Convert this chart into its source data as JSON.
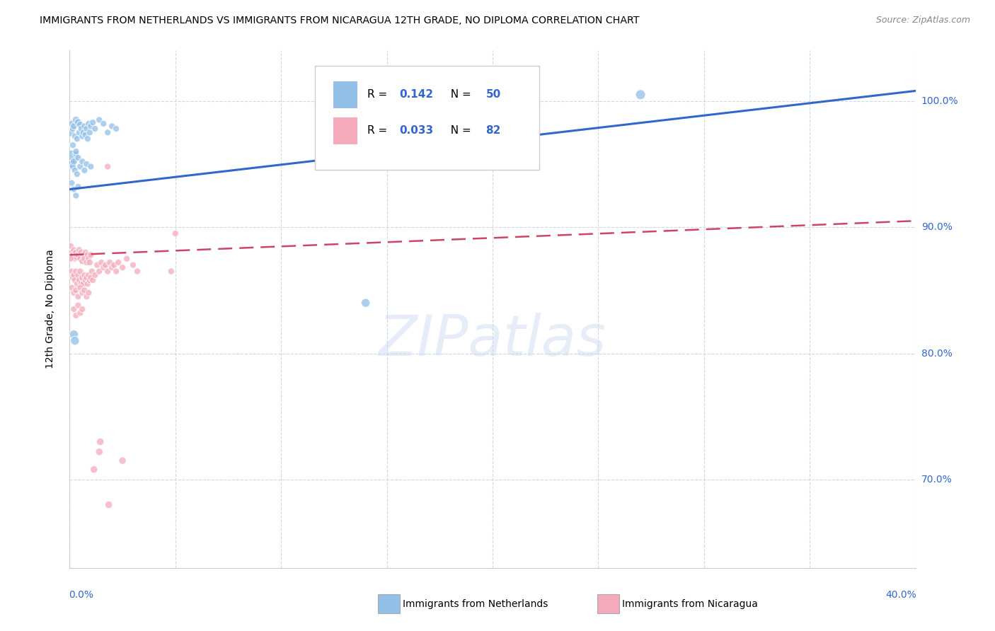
{
  "title": "IMMIGRANTS FROM NETHERLANDS VS IMMIGRANTS FROM NICARAGUA 12TH GRADE, NO DIPLOMA CORRELATION CHART",
  "source": "Source: ZipAtlas.com",
  "ylabel": "12th Grade, No Diploma",
  "xlim": [
    0.0,
    40.0
  ],
  "ylim": [
    63.0,
    104.0
  ],
  "yticks": [
    70,
    80,
    90,
    100
  ],
  "xticks": [
    0,
    5,
    10,
    15,
    20,
    25,
    30,
    35,
    40
  ],
  "legend_netherlands_R": 0.142,
  "legend_netherlands_N": 50,
  "legend_nicaragua_R": 0.033,
  "legend_nicaragua_N": 82,
  "blue_scatter_color": "#92C0E8",
  "pink_scatter_color": "#F4AABB",
  "trend_blue_color": "#3366CC",
  "trend_pink_color": "#CC4466",
  "watermark": "ZIPatlas",
  "blue_trend_x0": 0.0,
  "blue_trend_y0": 93.0,
  "blue_trend_x1": 40.0,
  "blue_trend_y1": 100.8,
  "pink_trend_x0": 0.0,
  "pink_trend_y0": 87.8,
  "pink_trend_x1": 40.0,
  "pink_trend_y1": 90.5,
  "netherlands_points": [
    [
      0.05,
      97.5
    ],
    [
      0.1,
      98.2
    ],
    [
      0.15,
      97.8
    ],
    [
      0.2,
      98.0
    ],
    [
      0.25,
      97.2
    ],
    [
      0.3,
      98.5
    ],
    [
      0.35,
      97.0
    ],
    [
      0.4,
      98.3
    ],
    [
      0.45,
      97.5
    ],
    [
      0.5,
      98.1
    ],
    [
      0.55,
      97.8
    ],
    [
      0.6,
      97.2
    ],
    [
      0.65,
      97.5
    ],
    [
      0.7,
      98.0
    ],
    [
      0.75,
      97.3
    ],
    [
      0.8,
      97.8
    ],
    [
      0.85,
      97.0
    ],
    [
      0.9,
      98.2
    ],
    [
      0.95,
      97.5
    ],
    [
      1.0,
      98.0
    ],
    [
      1.1,
      98.3
    ],
    [
      1.2,
      97.8
    ],
    [
      1.4,
      98.5
    ],
    [
      1.6,
      98.2
    ],
    [
      1.8,
      97.5
    ],
    [
      2.0,
      98.0
    ],
    [
      2.2,
      97.8
    ],
    [
      0.05,
      95.5
    ],
    [
      0.1,
      95.0
    ],
    [
      0.15,
      94.8
    ],
    [
      0.2,
      95.2
    ],
    [
      0.25,
      94.5
    ],
    [
      0.3,
      95.8
    ],
    [
      0.35,
      94.2
    ],
    [
      0.4,
      95.5
    ],
    [
      0.5,
      94.8
    ],
    [
      0.6,
      95.2
    ],
    [
      0.7,
      94.5
    ],
    [
      0.8,
      95.0
    ],
    [
      1.0,
      94.8
    ],
    [
      0.1,
      93.5
    ],
    [
      0.2,
      93.0
    ],
    [
      0.3,
      92.5
    ],
    [
      0.4,
      93.2
    ],
    [
      0.2,
      81.5
    ],
    [
      0.25,
      81.0
    ],
    [
      14.0,
      84.0
    ],
    [
      27.0,
      100.5
    ],
    [
      0.15,
      96.5
    ],
    [
      0.3,
      96.0
    ]
  ],
  "netherlands_sizes": [
    35,
    25,
    22,
    25,
    22,
    28,
    22,
    28,
    22,
    28,
    22,
    22,
    22,
    22,
    22,
    22,
    22,
    22,
    22,
    22,
    22,
    22,
    22,
    22,
    22,
    22,
    22,
    120,
    35,
    25,
    25,
    22,
    22,
    22,
    22,
    22,
    22,
    22,
    22,
    22,
    22,
    22,
    22,
    22,
    40,
    40,
    40,
    50,
    22,
    22
  ],
  "nicaragua_points": [
    [
      0.05,
      88.5
    ],
    [
      0.1,
      88.0
    ],
    [
      0.15,
      87.8
    ],
    [
      0.2,
      88.2
    ],
    [
      0.25,
      87.5
    ],
    [
      0.3,
      88.0
    ],
    [
      0.35,
      87.6
    ],
    [
      0.4,
      87.8
    ],
    [
      0.45,
      88.2
    ],
    [
      0.5,
      87.5
    ],
    [
      0.55,
      88.0
    ],
    [
      0.6,
      87.3
    ],
    [
      0.65,
      87.8
    ],
    [
      0.7,
      87.5
    ],
    [
      0.75,
      88.0
    ],
    [
      0.8,
      87.2
    ],
    [
      0.85,
      87.8
    ],
    [
      0.9,
      87.5
    ],
    [
      0.95,
      87.2
    ],
    [
      1.0,
      87.8
    ],
    [
      0.1,
      86.5
    ],
    [
      0.15,
      86.0
    ],
    [
      0.2,
      86.2
    ],
    [
      0.25,
      85.8
    ],
    [
      0.3,
      86.5
    ],
    [
      0.35,
      85.5
    ],
    [
      0.4,
      86.2
    ],
    [
      0.45,
      85.8
    ],
    [
      0.5,
      86.5
    ],
    [
      0.55,
      85.5
    ],
    [
      0.6,
      86.0
    ],
    [
      0.65,
      85.5
    ],
    [
      0.7,
      86.2
    ],
    [
      0.75,
      85.8
    ],
    [
      0.8,
      86.0
    ],
    [
      0.85,
      85.5
    ],
    [
      0.9,
      86.2
    ],
    [
      0.95,
      85.8
    ],
    [
      1.0,
      86.0
    ],
    [
      1.05,
      86.5
    ],
    [
      1.1,
      85.8
    ],
    [
      1.2,
      86.2
    ],
    [
      1.3,
      87.0
    ],
    [
      1.4,
      86.5
    ],
    [
      1.5,
      87.2
    ],
    [
      1.6,
      86.8
    ],
    [
      1.7,
      87.0
    ],
    [
      1.8,
      86.5
    ],
    [
      1.9,
      87.2
    ],
    [
      2.0,
      86.8
    ],
    [
      2.1,
      87.0
    ],
    [
      2.2,
      86.5
    ],
    [
      2.3,
      87.2
    ],
    [
      2.5,
      86.8
    ],
    [
      2.7,
      87.5
    ],
    [
      3.0,
      87.0
    ],
    [
      3.2,
      86.5
    ],
    [
      0.1,
      85.2
    ],
    [
      0.2,
      84.8
    ],
    [
      0.3,
      85.0
    ],
    [
      0.4,
      84.5
    ],
    [
      0.5,
      85.2
    ],
    [
      0.6,
      84.8
    ],
    [
      0.7,
      85.0
    ],
    [
      0.8,
      84.5
    ],
    [
      0.9,
      84.8
    ],
    [
      0.2,
      83.5
    ],
    [
      0.3,
      83.0
    ],
    [
      0.4,
      83.8
    ],
    [
      0.5,
      83.2
    ],
    [
      0.6,
      83.5
    ],
    [
      1.4,
      72.2
    ],
    [
      1.45,
      73.0
    ],
    [
      2.5,
      71.5
    ],
    [
      1.15,
      70.8
    ],
    [
      1.85,
      68.0
    ],
    [
      4.8,
      86.5
    ],
    [
      5.0,
      89.5
    ],
    [
      1.8,
      94.8
    ],
    [
      0.05,
      87.5
    ]
  ],
  "nicaragua_sizes": [
    22,
    22,
    22,
    22,
    22,
    22,
    22,
    22,
    22,
    22,
    22,
    22,
    22,
    22,
    22,
    22,
    22,
    22,
    22,
    22,
    22,
    22,
    22,
    22,
    22,
    22,
    22,
    22,
    22,
    22,
    22,
    22,
    22,
    22,
    22,
    22,
    22,
    22,
    22,
    22,
    22,
    22,
    22,
    22,
    22,
    22,
    22,
    22,
    22,
    22,
    22,
    22,
    22,
    22,
    22,
    22,
    22,
    22,
    22,
    22,
    22,
    22,
    22,
    22,
    22,
    22,
    22,
    22,
    22,
    22,
    22,
    28,
    28,
    28,
    28,
    28,
    22,
    22,
    22,
    22
  ]
}
